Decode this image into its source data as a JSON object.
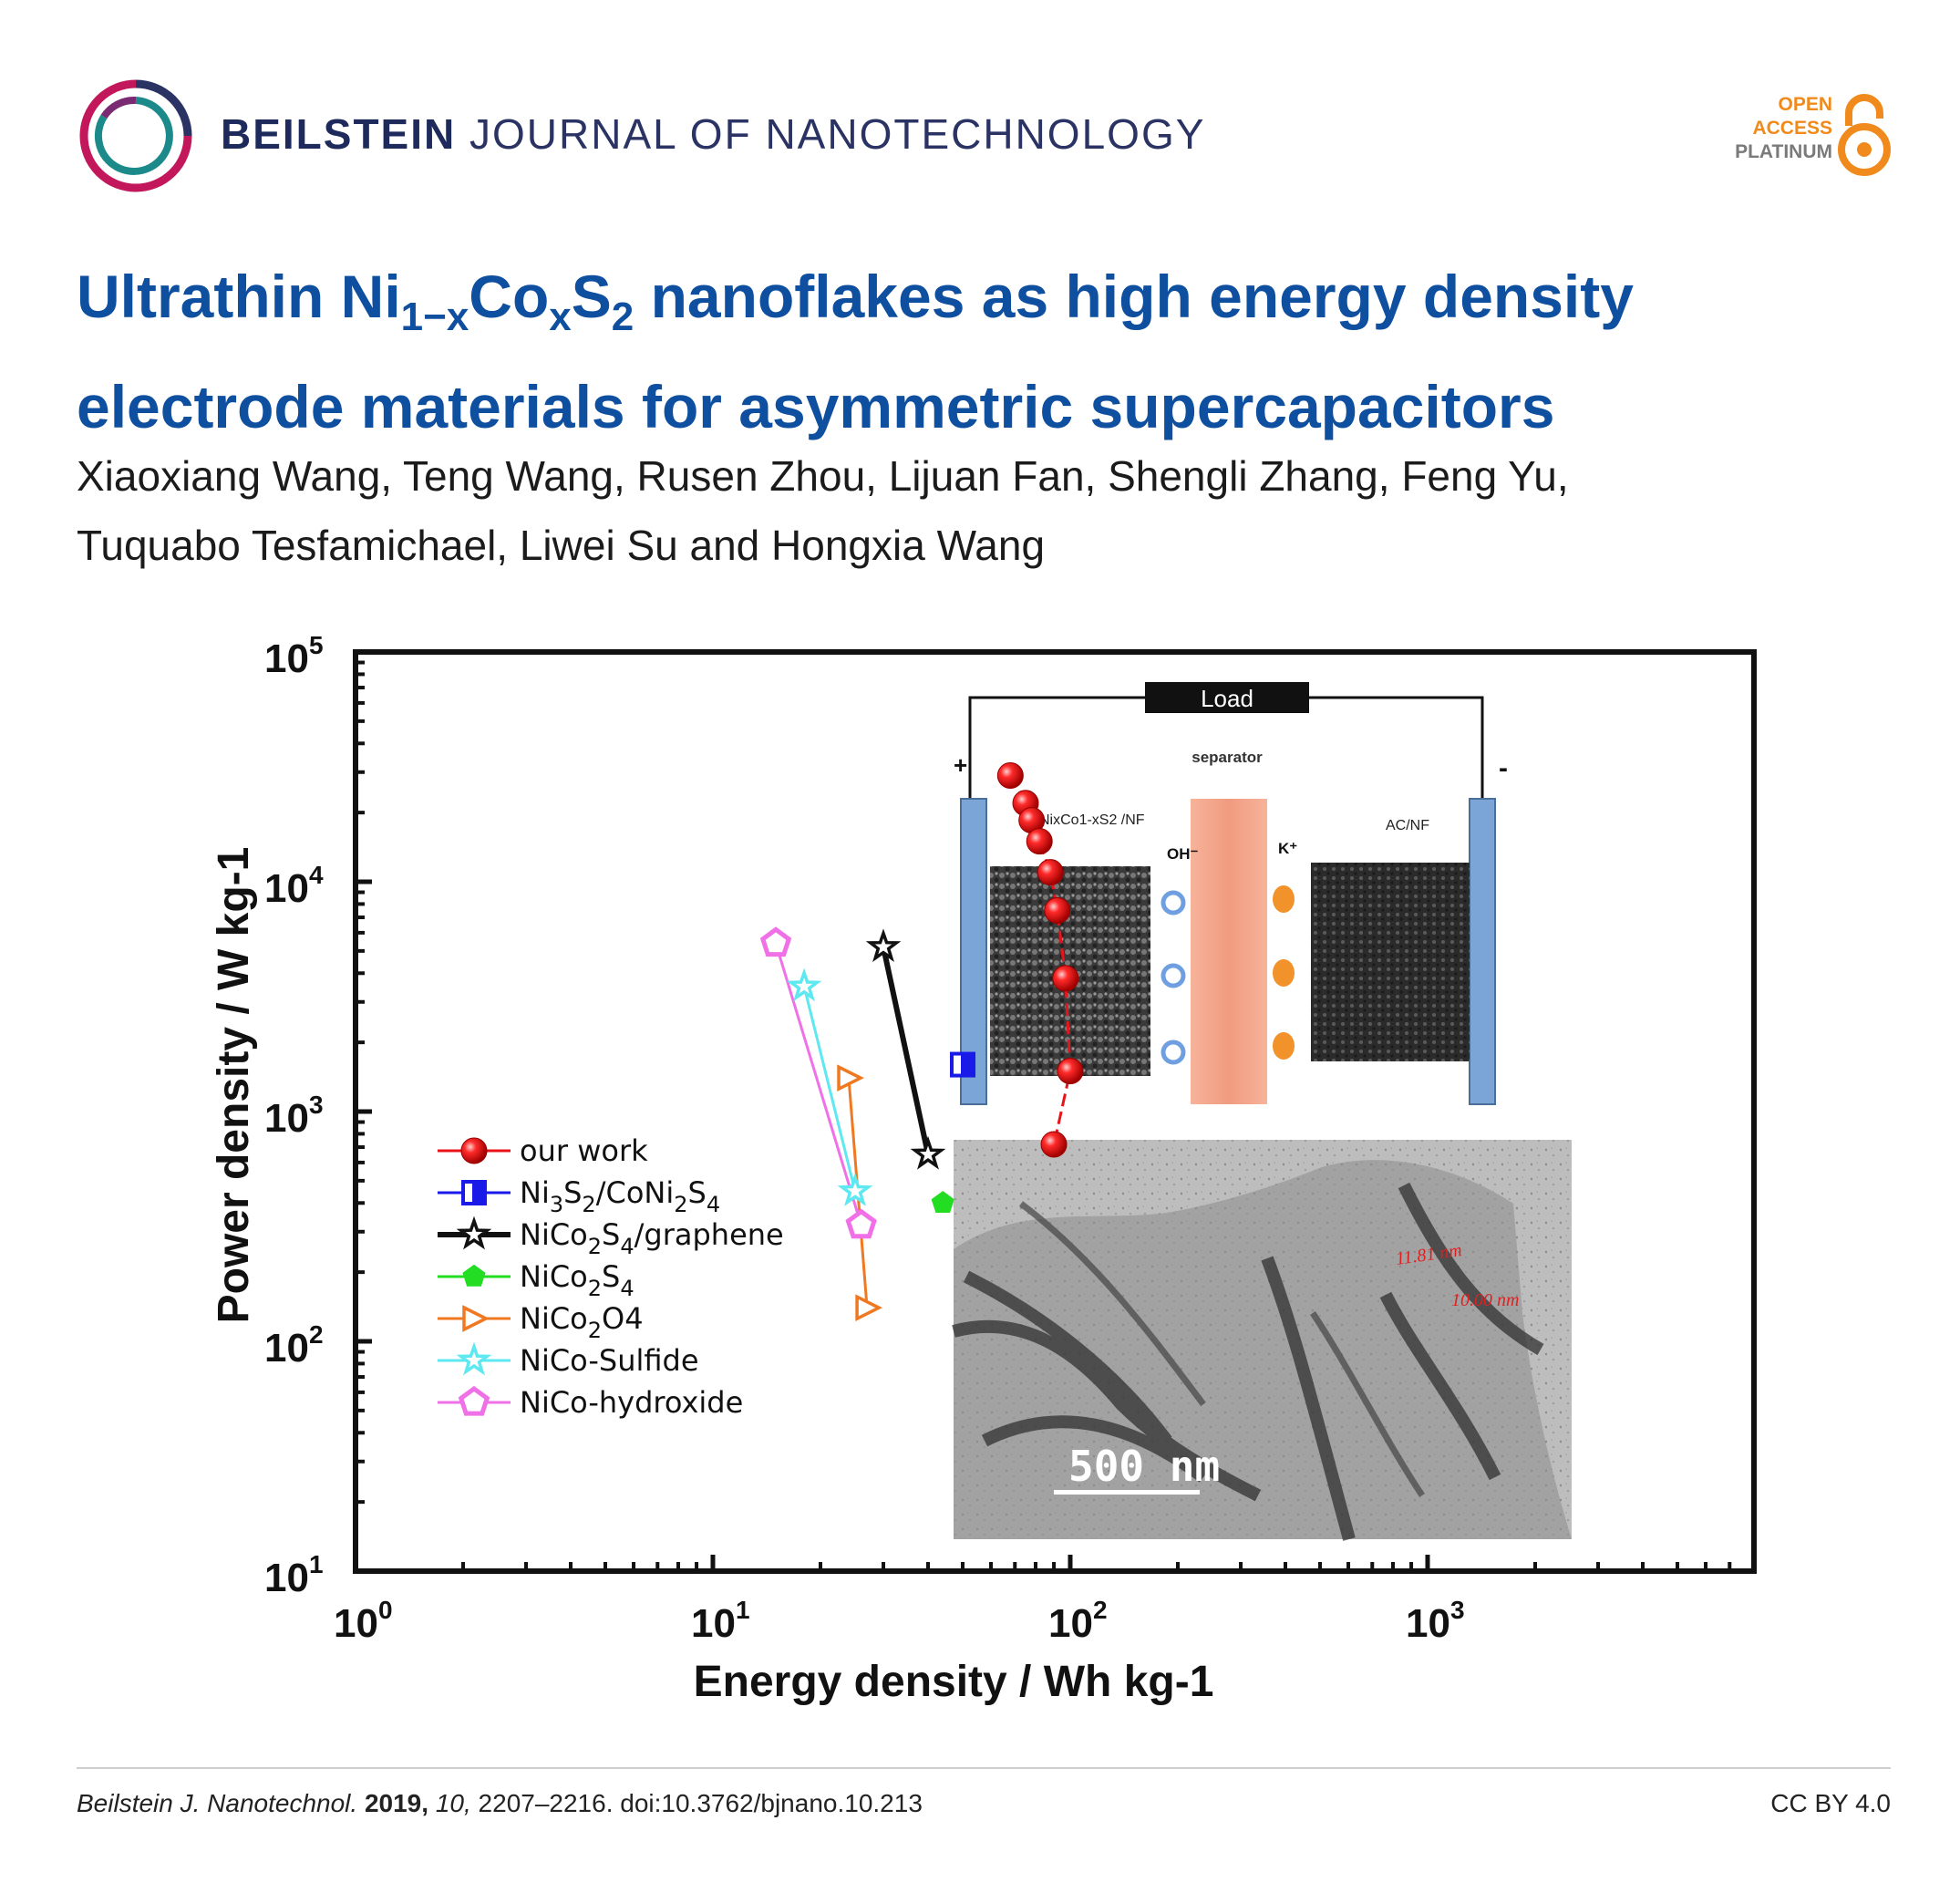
{
  "header": {
    "journal_bold": "BEILSTEIN",
    "journal_rest": " JOURNAL OF NANOTECHNOLOGY",
    "oa_line1": "OPEN",
    "oa_line2": "ACCESS",
    "oa_line3": "PLATINUM",
    "oa_color": "#f08a1c"
  },
  "article": {
    "title_p1": "Ultrathin Ni",
    "title_sub1": "1−x",
    "title_p2": "Co",
    "title_sub2": "x",
    "title_p3": "S",
    "title_sub3": "2",
    "title_p4": " nanoflakes as high energy density electrode materials for asymmetric supercapacitors",
    "authors_line1": "Xiaoxiang Wang, Teng Wang, Rusen Zhou, Lijuan Fan, Shengli Zhang, Feng Yu,",
    "authors_line2": "Tuquabo Tesfamichael, Liwei Su and Hongxia Wang",
    "title_color": "#0f4fa0"
  },
  "chart_data": {
    "type": "scatter",
    "xscale": "log",
    "yscale": "log",
    "xlim": [
      1,
      7000
    ],
    "ylim": [
      10,
      100000
    ],
    "xlabel": "Energy density / Wh kg-1",
    "ylabel": "Power density / W kg-1",
    "x_ticks": [
      {
        "base": "10",
        "exp": "0"
      },
      {
        "base": "10",
        "exp": "1"
      },
      {
        "base": "10",
        "exp": "2"
      },
      {
        "base": "10",
        "exp": "3"
      }
    ],
    "y_ticks": [
      {
        "base": "10",
        "exp": "1"
      },
      {
        "base": "10",
        "exp": "2"
      },
      {
        "base": "10",
        "exp": "3"
      },
      {
        "base": "10",
        "exp": "4"
      },
      {
        "base": "10",
        "exp": "5"
      }
    ],
    "legend_position": "left",
    "series": [
      {
        "name": "our work",
        "color": "#e8141c",
        "marker": "sphere",
        "line": "dash",
        "x": [
          68,
          75,
          78,
          82,
          88,
          92,
          97,
          100,
          90
        ],
        "y": [
          29000,
          22000,
          18500,
          15000,
          11000,
          7500,
          3800,
          1500,
          720
        ]
      },
      {
        "name": "Ni3S2/CoNi2S4",
        "color": "#1a1ae8",
        "marker": "half-square",
        "line": "dash",
        "x": [
          50
        ],
        "y": [
          1600
        ]
      },
      {
        "name": "NiCo2S4/graphene",
        "color": "#111111",
        "marker": "star-open",
        "line": "solid",
        "x": [
          30,
          40
        ],
        "y": [
          5200,
          650
        ]
      },
      {
        "name": "NiCo2S4",
        "color": "#22dd22",
        "marker": "pentagon",
        "line": "solid",
        "x": [
          44
        ],
        "y": [
          400
        ]
      },
      {
        "name": "NiCo2O4",
        "color": "#f07820",
        "marker": "triangle-right-open",
        "line": "solid",
        "x": [
          24,
          27
        ],
        "y": [
          1400,
          140
        ]
      },
      {
        "name": "NiCo-Sulfide",
        "color": "#5ee8f0",
        "marker": "star-open",
        "line": "solid",
        "x": [
          18,
          25
        ],
        "y": [
          3500,
          450
        ]
      },
      {
        "name": "NiCo-hydroxide",
        "color": "#f070e8",
        "marker": "pentagon-open",
        "line": "solid",
        "x": [
          15,
          26
        ],
        "y": [
          5400,
          320
        ]
      }
    ],
    "legend_labels": [
      {
        "main": "our work"
      },
      {
        "parts": [
          "Ni",
          "3",
          "S",
          "2",
          "/CoNi",
          "2",
          "S",
          "4"
        ]
      },
      {
        "parts": [
          "NiCo",
          "2",
          "S",
          "4",
          "/graphene"
        ]
      },
      {
        "parts": [
          "NiCo",
          "2",
          "S",
          "4"
        ]
      },
      {
        "parts": [
          "NiCo",
          "2",
          "O4"
        ]
      },
      {
        "main": "NiCo-Sulfide"
      },
      {
        "main": "NiCo-hydroxide"
      }
    ]
  },
  "inset_schematic": {
    "load": "Load",
    "plus": "+",
    "minus": "-",
    "separator": "separator",
    "left_electrode": "NixCo1-xS2 /NF",
    "right_electrode": "AC/NF",
    "anion": "OH⁻",
    "cation": "K⁺"
  },
  "inset_tem": {
    "scale_bar": "500 nm",
    "annotation1": "11.81 nm",
    "annotation2": "10.00 nm"
  },
  "footer": {
    "journal_abbrev": "Beilstein J. Nanotechnol.",
    "year": "2019,",
    "volume": "10,",
    "pages_doi": " 2207–2216. doi:10.3762/bjnano.10.213",
    "license": "CC BY 4.0"
  }
}
